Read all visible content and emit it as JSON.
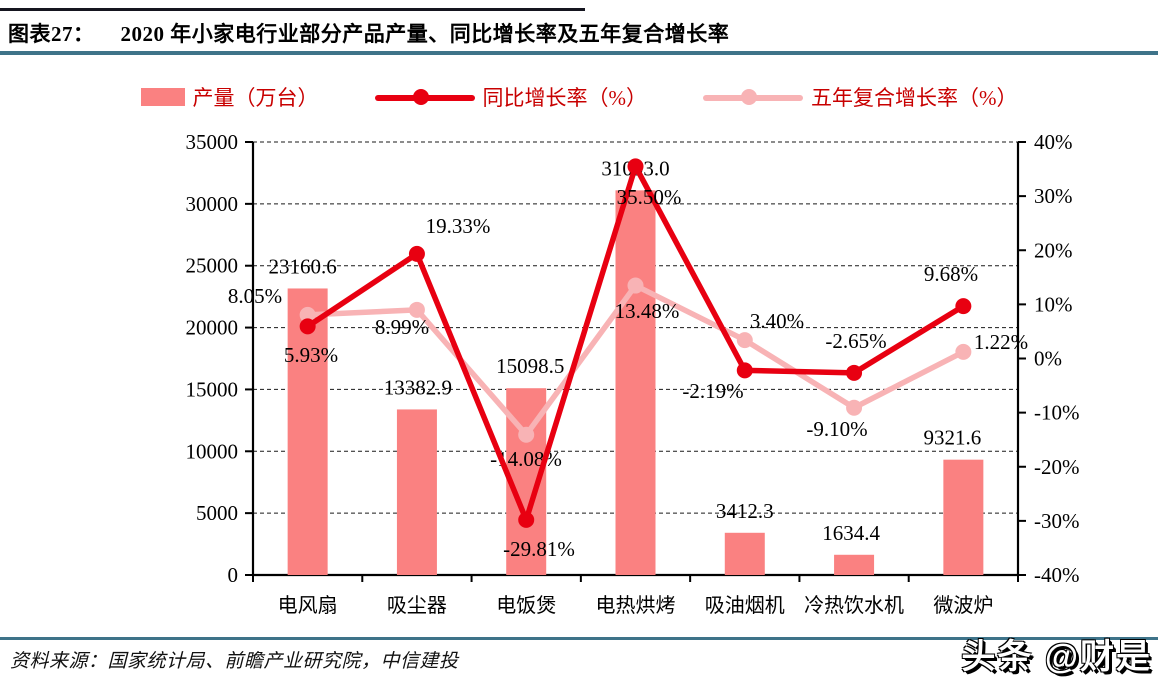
{
  "header": {
    "label": "图表27：",
    "title": "2020 年小家电行业部分产品产量、同比增长率及五年复合增长率"
  },
  "legend": [
    {
      "label": "产量（万台）",
      "type": "bar",
      "color": "#fa8181"
    },
    {
      "label": "同比增长率（%）",
      "type": "line",
      "color": "#e80011"
    },
    {
      "label": "五年复合增长率（%）",
      "type": "line",
      "color": "#f8b3b5"
    }
  ],
  "chart_data": {
    "type": "bar",
    "title": "2020 年小家电行业部分产品产量、同比增长率及五年复合增长率",
    "categories": [
      "电风扇",
      "吸尘器",
      "电饭煲",
      "电热烘烤",
      "吸油烟机",
      "冷热饮水机",
      "微波炉"
    ],
    "series": [
      {
        "name": "产量（万台）",
        "type": "bar",
        "axis": "left",
        "values": [
          23160.6,
          13382.9,
          15098.5,
          31093.0,
          3412.3,
          1634.4,
          9321.6
        ],
        "labels": [
          "23160.6",
          "13382.9",
          "15098.5",
          "31093.0",
          "3412.3",
          "1634.4",
          "9321.6"
        ]
      },
      {
        "name": "同比增长率（%）",
        "type": "line",
        "axis": "right",
        "values": [
          5.93,
          19.33,
          -29.81,
          35.5,
          -2.19,
          -2.65,
          9.68
        ],
        "labels": [
          "5.93%",
          "19.33%",
          "-29.81%",
          "35.50%",
          "-2.19%",
          "-2.65%",
          "9.68%"
        ]
      },
      {
        "name": "五年复合增长率（%）",
        "type": "line",
        "axis": "right",
        "values": [
          8.05,
          8.99,
          -14.08,
          13.48,
          3.4,
          -9.1,
          1.22
        ],
        "labels": [
          "8.05%",
          "8.99%",
          "-14.08%",
          "13.48%",
          "3.40%",
          "-9.10%",
          "1.22%"
        ]
      }
    ],
    "left_axis": {
      "min": 0,
      "max": 35000,
      "step": 5000,
      "ticks": [
        "0",
        "5000",
        "10000",
        "15000",
        "20000",
        "25000",
        "30000",
        "35000"
      ]
    },
    "right_axis": {
      "min": -40,
      "max": 40,
      "step": 10,
      "ticks": [
        "40%",
        "30%",
        "20%",
        "10%",
        "0%",
        "-10%",
        "-20%",
        "-30%",
        "-40%"
      ]
    },
    "grid": "horizontal dashed lines at left-axis steps",
    "legend_position": "top"
  },
  "colors": {
    "bar": "#fa8181",
    "yoy_line": "#e80011",
    "cagr_line": "#f8b3b5",
    "legend_text": "#c80000",
    "rule": "#3e7389",
    "top_line": "#15151f",
    "grid_line": "#1a1a1a",
    "axis": "#000000",
    "label_text": "#000000"
  },
  "footer": {
    "source": "资料来源：国家统计局、前瞻产业研究院，中信建投",
    "watermark": "头条 @财是"
  }
}
